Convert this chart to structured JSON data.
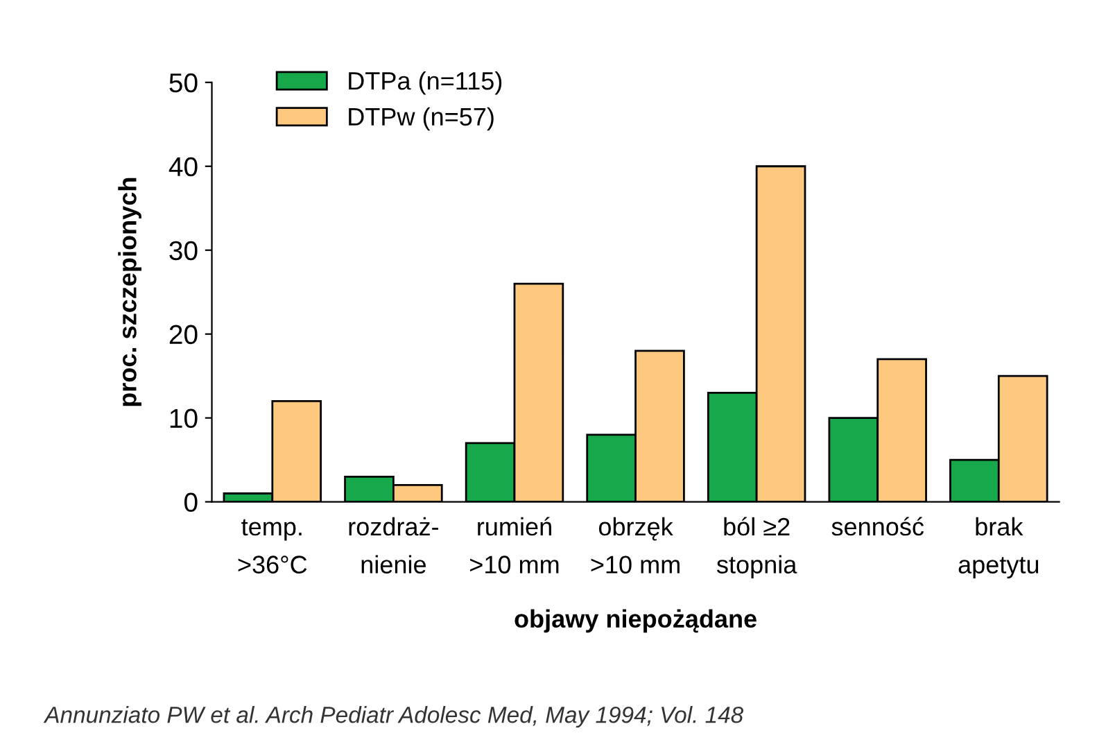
{
  "chart_data": {
    "type": "bar",
    "xlabel": "objawy niepożądane",
    "ylabel": "proc. szczepionych",
    "categories": [
      "temp.\n>36°C",
      "rozdraż-\nnienie",
      "rumień\n>10 mm",
      "obrzęk\n>10 mm",
      "ból ≥2\nstopnia",
      "senność",
      "brak\napetytu"
    ],
    "series": [
      {
        "name": "DTPa (n=115)",
        "color": "#16a84a",
        "values": [
          1,
          3,
          7,
          8,
          13,
          10,
          5
        ]
      },
      {
        "name": "DTPw (n=57)",
        "color": "#ffc87f",
        "values": [
          12,
          2,
          26,
          18,
          40,
          17,
          15
        ]
      }
    ],
    "ylim": [
      0,
      50
    ],
    "yticks": [
      0,
      10,
      20,
      30,
      40,
      50
    ],
    "grid": false,
    "legend": "top left",
    "annotations": [
      "Annunziato PW et al. Arch Pediatr Adolesc Med, May 1994; Vol. 148"
    ]
  }
}
